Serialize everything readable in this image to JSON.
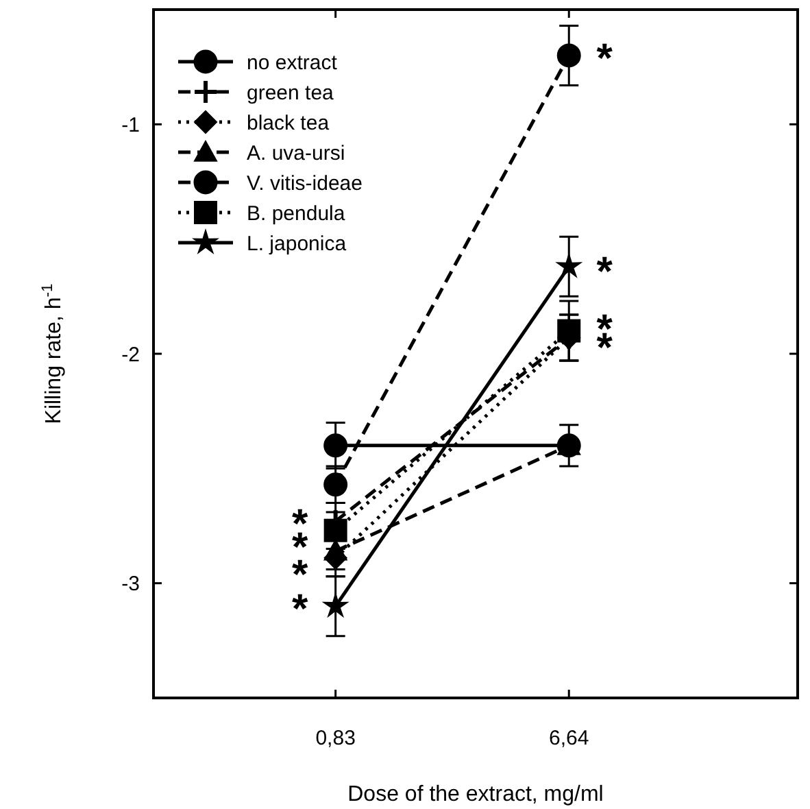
{
  "chart_data": {
    "type": "line",
    "xlabel": "Dose of the extract, mg/ml",
    "ylabel": "Killing rate, h$^{-1}$",
    "categories": [
      "0,83",
      "6,64"
    ],
    "ylim": [
      -3.5,
      -0.5
    ],
    "yticks": [
      -1,
      -2,
      -3
    ],
    "legend": "top left",
    "grid": false,
    "series": [
      {
        "name": "no extract",
        "color": "#000000",
        "values": [
          -2.4,
          -2.4
        ],
        "errors": [
          0.1,
          0.09
        ],
        "marker": "circle",
        "line_style": "solid"
      },
      {
        "name": "green tea",
        "color": "#000000",
        "values": [
          -2.73,
          -1.93
        ],
        "errors": [
          0.08,
          0.1
        ],
        "marker": "cross",
        "line_style": "dashed"
      },
      {
        "name": "black tea",
        "color": "#000000",
        "values": [
          -2.89,
          -1.93
        ],
        "errors": [
          0.08,
          0.1
        ],
        "marker": "diamond",
        "line_style": "dotted"
      },
      {
        "name": "A. uva-ursi",
        "color": "#000000",
        "values": [
          -2.86,
          -2.4
        ],
        "errors": [
          0.08,
          null
        ],
        "marker": "triangle",
        "line_style": "dashed"
      },
      {
        "name": "V. vitis-ideae",
        "color": "#000000",
        "values": [
          -2.57,
          -0.7
        ],
        "errors": [
          0.08,
          0.13
        ],
        "marker": "circle",
        "line_style": "dashed"
      },
      {
        "name": "B. pendula",
        "color": "#000000",
        "values": [
          -2.77,
          -1.9
        ],
        "errors": [
          0.08,
          0.13
        ],
        "marker": "square",
        "line_style": "dotted"
      },
      {
        "name": "L. japonica",
        "color": "#000000",
        "values": [
          -3.1,
          -1.62
        ],
        "errors": [
          0.13,
          0.13
        ],
        "marker": "star",
        "line_style": "solid"
      }
    ],
    "annotations": [
      {
        "text": "*",
        "x": "0,83",
        "y": -2.73
      },
      {
        "text": "*",
        "x": "0,83",
        "y": -2.83
      },
      {
        "text": "*",
        "x": "0,83",
        "y": -2.95
      },
      {
        "text": "*",
        "x": "0,83",
        "y": -3.1
      },
      {
        "text": "*",
        "x": "6,64",
        "y": -0.7
      },
      {
        "text": "*",
        "x": "6,64",
        "y": -1.63
      },
      {
        "text": "*",
        "x": "6,64",
        "y": -1.88
      },
      {
        "text": "*",
        "x": "6,64",
        "y": -1.96
      }
    ]
  }
}
